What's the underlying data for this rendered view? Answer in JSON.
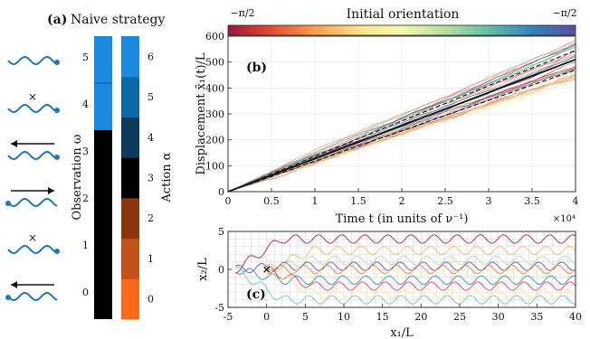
{
  "panel_a": {
    "label": "(a)",
    "title": "Naive strategy",
    "observation_axis_label": "Observation ω",
    "action_axis_label": "Action α",
    "observation_ticks": [
      "0",
      "1",
      "2",
      "3",
      "4",
      "5"
    ],
    "action_ticks": [
      "0",
      "1",
      "2",
      "3",
      "4",
      "5",
      "6"
    ],
    "observation_colors": {
      "dark": "#000000",
      "light": "#1a8ae0"
    },
    "action_colors": [
      "#ff6a1a",
      "#c4501a",
      "#8a3510",
      "#000000",
      "#0b3a5c",
      "#0a6aa8",
      "#1a8ae0"
    ],
    "icons": [
      "swimmer-right-head",
      "swimmer-cross",
      "swimmer-arrow-left",
      "swimmer-arrow-right",
      "swimmer-cross",
      "swimmer-arrow-left"
    ]
  },
  "colorbar": {
    "title": "Initial orientation",
    "left_label": "−π/2",
    "right_label": "−π/2"
  },
  "chart_data": [
    {
      "type": "line",
      "panel": "(b)",
      "xlabel": "Time t (in units of ν⁻¹)",
      "ylabel": "Displacement x̄₁(t)/L",
      "x_multiplier": "×10⁴",
      "xlim": [
        0,
        4
      ],
      "ylim": [
        0,
        600
      ],
      "x_ticks": [
        "0",
        "0.5",
        "1",
        "1.5",
        "2",
        "2.5",
        "3",
        "3.5",
        "4"
      ],
      "y_ticks": [
        "0",
        "100",
        "200",
        "300",
        "400",
        "500",
        "600"
      ],
      "series_summary": {
        "mean_final": 510,
        "upper_dashed_final": 545,
        "lower_dashed_final": 470,
        "ensemble_min_final": 440,
        "ensemble_max_final": 580
      },
      "grid": true
    },
    {
      "type": "line",
      "panel": "(c)",
      "xlabel": "x₁/L",
      "ylabel": "x₂/L",
      "xlim": [
        -5,
        40
      ],
      "ylim": [
        -5,
        5
      ],
      "x_ticks": [
        "-5",
        "0",
        "5",
        "10",
        "15",
        "20",
        "25",
        "30",
        "35",
        "40"
      ],
      "y_ticks": [
        "-5",
        "0",
        "5"
      ],
      "start_point": [
        0,
        0
      ],
      "grid": true
    }
  ]
}
